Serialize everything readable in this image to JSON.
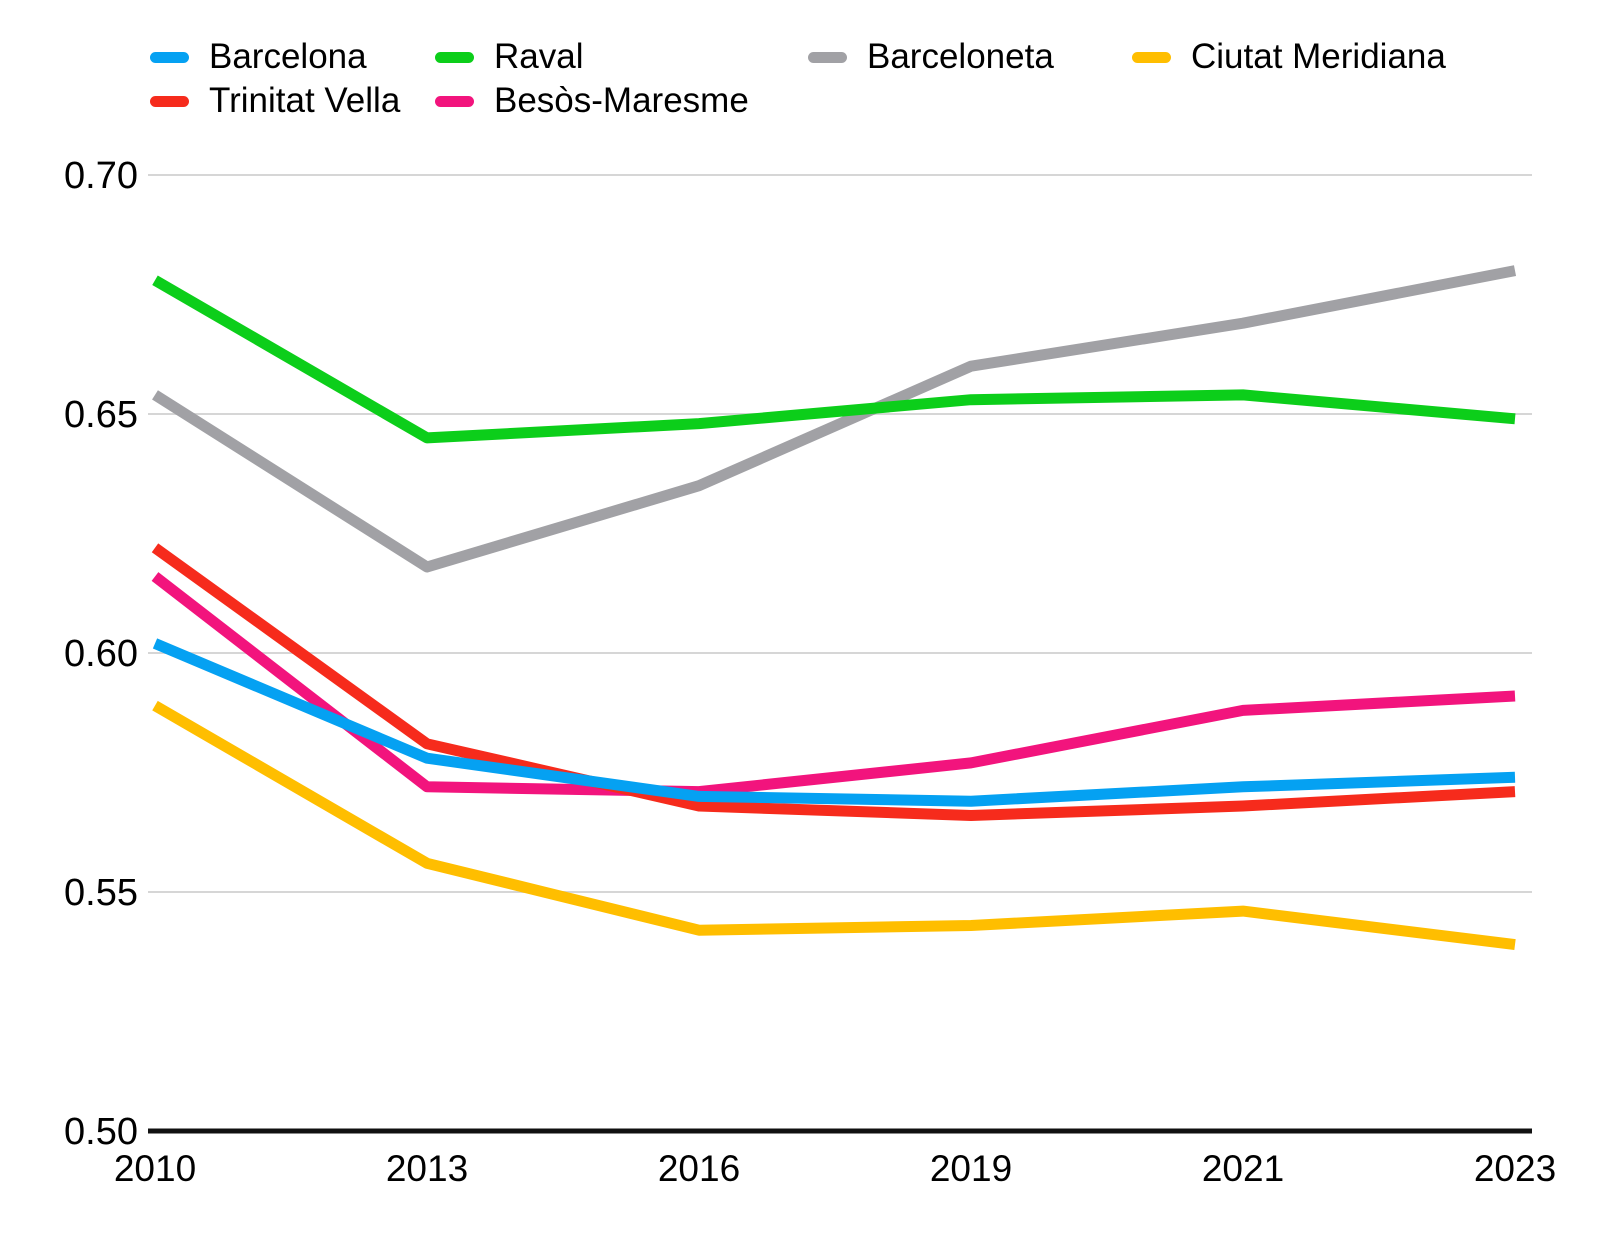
{
  "chart_data": {
    "type": "line",
    "title": "",
    "xlabel": "",
    "ylabel": "",
    "categories": [
      "2010",
      "2013",
      "2016",
      "2019",
      "2021",
      "2023"
    ],
    "ylim": [
      0.5,
      0.7
    ],
    "y_ticks": [
      {
        "v": 0.7,
        "label": "0.70"
      },
      {
        "v": 0.65,
        "label": "0.65"
      },
      {
        "v": 0.6,
        "label": "0.60"
      },
      {
        "v": 0.55,
        "label": "0.55"
      },
      {
        "v": 0.5,
        "label": "0.50"
      }
    ],
    "grid": true,
    "series": [
      {
        "name": "Barcelona",
        "color": "#05a1f2",
        "values": [
          0.602,
          0.578,
          0.57,
          0.569,
          0.572,
          0.574
        ]
      },
      {
        "name": "Raval",
        "color": "#0cce1a",
        "values": [
          0.678,
          0.645,
          0.648,
          0.653,
          0.654,
          0.649
        ]
      },
      {
        "name": "Barceloneta",
        "color": "#a1a1a5",
        "values": [
          0.654,
          0.618,
          0.635,
          0.66,
          0.669,
          0.68
        ]
      },
      {
        "name": "Ciutat Meridiana",
        "color": "#ffbe00",
        "values": [
          0.589,
          0.556,
          0.542,
          0.543,
          0.546,
          0.539
        ]
      },
      {
        "name": "Trinitat Vella",
        "color": "#f62b1c",
        "values": [
          0.622,
          0.581,
          0.568,
          0.566,
          0.568,
          0.571
        ]
      },
      {
        "name": "Besòs-Maresme",
        "color": "#f2147d",
        "values": [
          0.616,
          0.572,
          0.571,
          0.577,
          0.588,
          0.591
        ]
      }
    ],
    "legend": {
      "position": "top-left",
      "rows": [
        [
          "Barcelona",
          "Raval",
          "Barceloneta",
          "Ciutat Meridiana"
        ],
        [
          "Trinitat Vella",
          "Besòs-Maresme"
        ]
      ]
    },
    "draw_order": [
      "Barceloneta",
      "Raval",
      "Ciutat Meridiana",
      "Besòs-Maresme",
      "Trinitat Vella",
      "Barcelona"
    ]
  }
}
